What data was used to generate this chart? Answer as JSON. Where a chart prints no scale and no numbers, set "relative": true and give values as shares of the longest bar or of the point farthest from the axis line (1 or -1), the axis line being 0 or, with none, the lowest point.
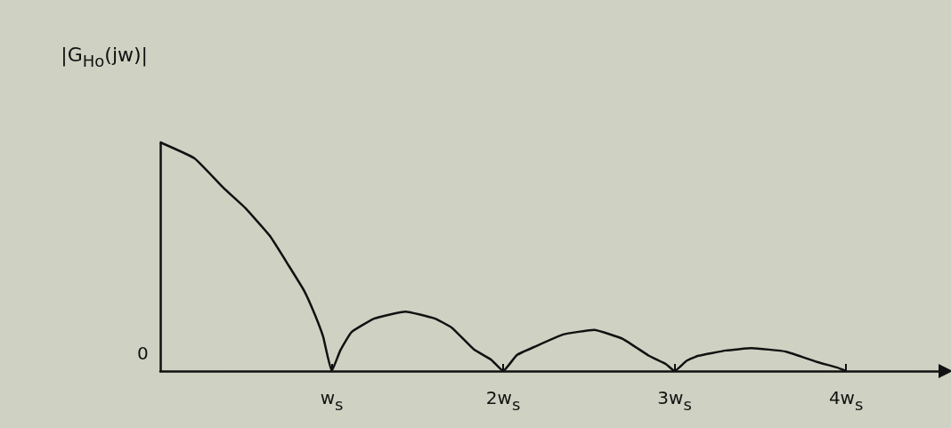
{
  "chart_data": {
    "type": "line",
    "ylabel": "|G$_{Ho}$(jw)|",
    "relative": true,
    "x": [
      0,
      0.2,
      0.37,
      0.5,
      0.64,
      0.75,
      0.84,
      0.9,
      0.95,
      1,
      1.05,
      1.115,
      1.25,
      1.43,
      1.6,
      1.7,
      1.83,
      1.93,
      2,
      2.08,
      2.18,
      2.35,
      2.53,
      2.7,
      2.85,
      2.95,
      3,
      3.07,
      3.14,
      3.3,
      3.45,
      3.65,
      3.83,
      3.95,
      4
    ],
    "series": [
      {
        "color": "#111111",
        "values": [
          1,
          0.93,
          0.8,
          0.71,
          0.59,
          0.46,
          0.35,
          0.25,
          0.15,
          0,
          0.09,
          0.17,
          0.23,
          0.26,
          0.23,
          0.19,
          0.094,
          0.05,
          0,
          0.07,
          0.105,
          0.16,
          0.18,
          0.14,
          0.067,
          0.03,
          0,
          0.045,
          0.067,
          0.09,
          0.1,
          0.085,
          0.04,
          0.015,
          0
        ]
      }
    ],
    "xlim": [
      0,
      4.55
    ],
    "xticks": [
      {
        "value": 1,
        "label": "w$_{s}$"
      },
      {
        "value": 2,
        "label": "2w$_{s}$"
      },
      {
        "value": 3,
        "label": "3w$_{s}$"
      },
      {
        "value": 4,
        "label": "4w$_{s}$"
      }
    ],
    "annotations": [
      "0"
    ],
    "grid": false,
    "marker": "none",
    "line_style": "solid"
  }
}
